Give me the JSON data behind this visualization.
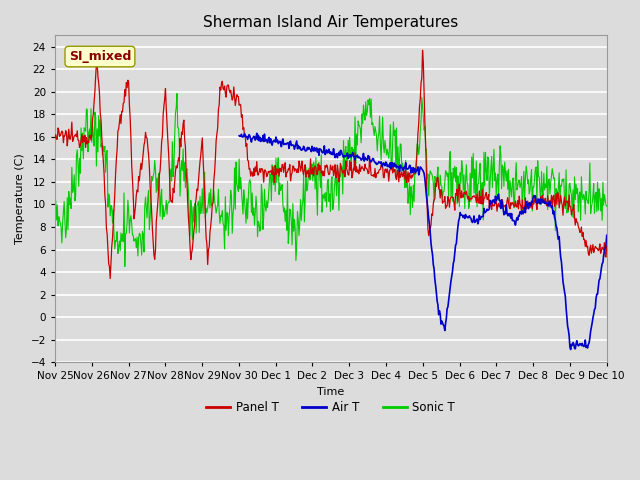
{
  "title": "Sherman Island Air Temperatures",
  "xlabel": "Time",
  "ylabel": "Temperature (C)",
  "ylim": [
    -4,
    25
  ],
  "yticks": [
    -4,
    -2,
    0,
    2,
    4,
    6,
    8,
    10,
    12,
    14,
    16,
    18,
    20,
    22,
    24
  ],
  "bg_color": "#dcdcdc",
  "grid_color": "#ffffff",
  "colors": {
    "panel_t": "#cc0000",
    "air_t": "#0000cc",
    "sonic_t": "#00cc00"
  },
  "legend_labels": [
    "Panel T",
    "Air T",
    "Sonic T"
  ],
  "annotation_text": "SI_mixed",
  "annotation_color": "#880000",
  "annotation_bg": "#ffffcc",
  "x_labels": [
    "Nov 25",
    "Nov 26",
    "Nov 27",
    "Nov 28",
    "Nov 29",
    "Nov 30",
    "Dec 1",
    "Dec 2",
    "Dec 3",
    "Dec 4",
    "Dec 5",
    "Dec 6",
    "Dec 7",
    "Dec 8",
    "Dec 9",
    "Dec 10"
  ],
  "x_positions": [
    0,
    1,
    2,
    3,
    4,
    5,
    6,
    7,
    8,
    9,
    10,
    11,
    12,
    13,
    14,
    15
  ],
  "figsize": [
    6.4,
    4.8
  ],
  "dpi": 100
}
